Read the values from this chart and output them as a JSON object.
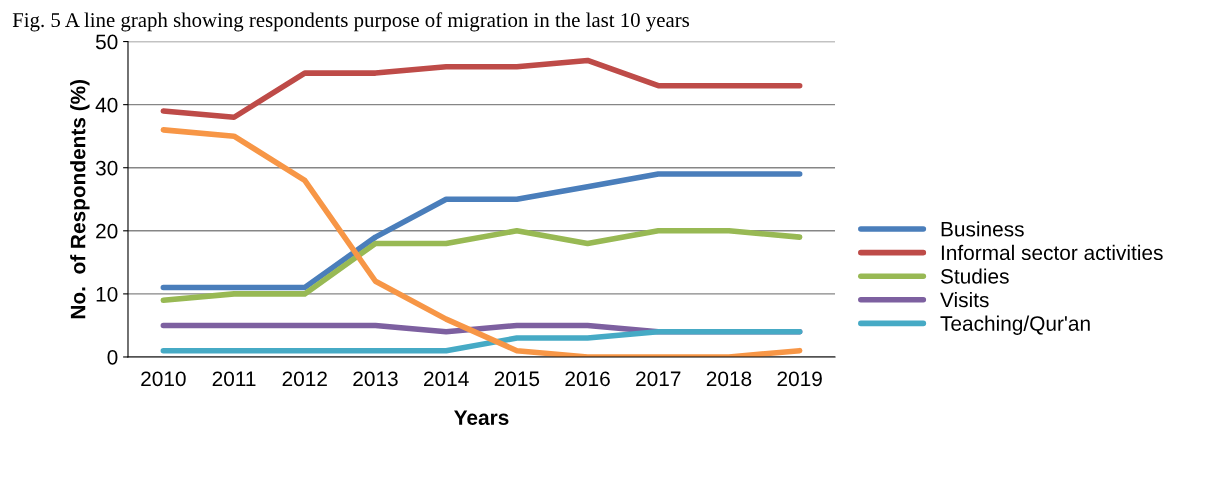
{
  "chart_data": {
    "type": "line",
    "title": "Fig. 5 A line graph showing respondents purpose of migration in the last 10 years",
    "xlabel": "Years",
    "ylabel": "No.  of Respondents (%)",
    "categories": [
      "2010",
      "2011",
      "2012",
      "2013",
      "2014",
      "2015",
      "2016",
      "2017",
      "2018",
      "2019"
    ],
    "series": [
      {
        "name": "Business",
        "color": "#4a7ebb",
        "values": [
          11,
          11,
          11,
          19,
          25,
          25,
          27,
          29,
          29,
          29
        ]
      },
      {
        "name": "Informal sector activities",
        "color": "#be4b48",
        "values": [
          39,
          38,
          45,
          45,
          46,
          46,
          47,
          43,
          43,
          43
        ]
      },
      {
        "name": "Studies",
        "color": "#98b954",
        "values": [
          9,
          10,
          10,
          18,
          18,
          20,
          18,
          20,
          20,
          19
        ]
      },
      {
        "name": "Visits",
        "color": "#7d60a0",
        "values": [
          5,
          5,
          5,
          5,
          4,
          5,
          5,
          4,
          4,
          4
        ]
      },
      {
        "name": "Teaching/Qur'an",
        "color": "#46aac5",
        "values": [
          1,
          1,
          1,
          1,
          1,
          3,
          3,
          4,
          4,
          4
        ]
      },
      {
        "color": "#f79646",
        "values": [
          36,
          35,
          28,
          12,
          6,
          1,
          0,
          0,
          0,
          1
        ]
      }
    ],
    "ylim": [
      0,
      50
    ],
    "yticks": [
      0,
      10,
      20,
      30,
      40,
      50
    ],
    "grid": "y",
    "legend": "right",
    "marker": "none",
    "line_style": "solid"
  }
}
